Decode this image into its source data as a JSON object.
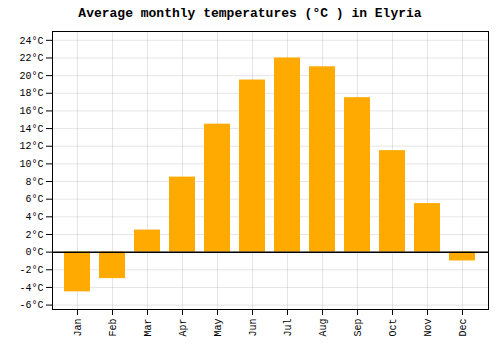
{
  "chart_data": {
    "type": "bar",
    "title": "Average monthly temperatures (°C ) in Elyria",
    "categories": [
      "Jan",
      "Feb",
      "Mar",
      "Apr",
      "May",
      "Jun",
      "Jul",
      "Aug",
      "Sep",
      "Oct",
      "Nov",
      "Dec"
    ],
    "values": [
      -4.5,
      -3.0,
      2.5,
      8.5,
      14.5,
      19.5,
      22.0,
      21.0,
      17.5,
      11.5,
      5.5,
      -1.0
    ],
    "color": "#FFAA00",
    "ylim": [
      -6.5,
      25
    ],
    "yticks": [
      {
        "value": -6,
        "label": "-6°C"
      },
      {
        "value": -4,
        "label": "-4°C"
      },
      {
        "value": -2,
        "label": "-2°C"
      },
      {
        "value": 0,
        "label": "0°C"
      },
      {
        "value": 2,
        "label": "2°C"
      },
      {
        "value": 4,
        "label": "4°C"
      },
      {
        "value": 6,
        "label": "6°C"
      },
      {
        "value": 8,
        "label": "8°C"
      },
      {
        "value": 10,
        "label": "10°C"
      },
      {
        "value": 12,
        "label": "12°C"
      },
      {
        "value": 14,
        "label": "14°C"
      },
      {
        "value": 16,
        "label": "16°C"
      },
      {
        "value": 18,
        "label": "18°C"
      },
      {
        "value": 20,
        "label": "20°C"
      },
      {
        "value": 22,
        "label": "22°C"
      },
      {
        "value": 24,
        "label": "24°C"
      }
    ],
    "grid": true
  }
}
